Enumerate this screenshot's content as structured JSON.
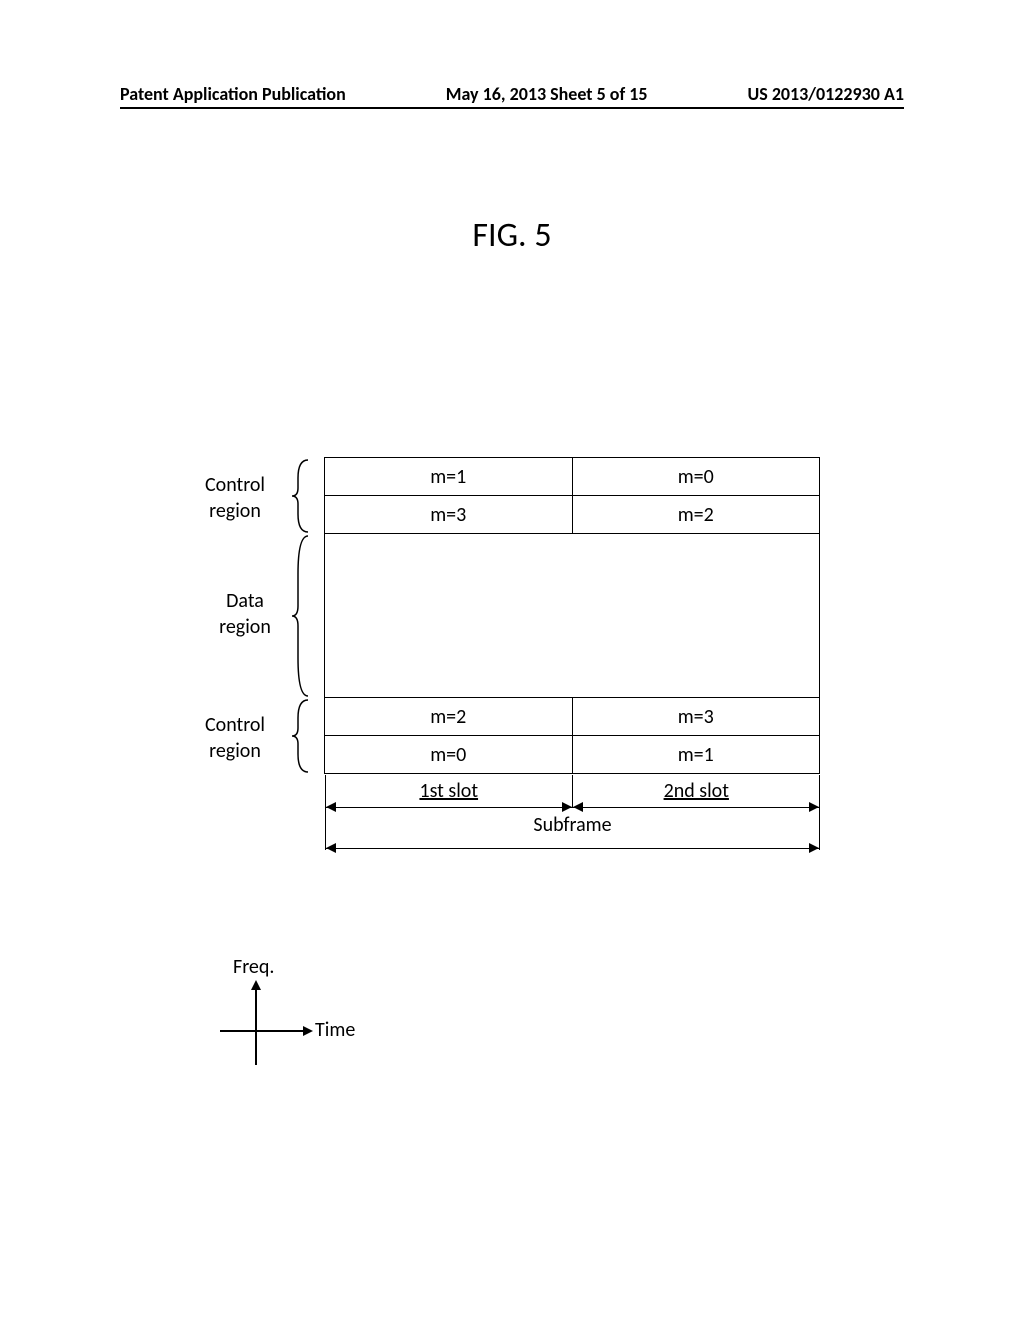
{
  "header": {
    "left": "Patent Application Publication",
    "center": "May 16, 2013  Sheet 5 of 15",
    "right": "US 2013/0122930 A1"
  },
  "figure": {
    "title": "FIG. 5",
    "regions": {
      "control_top": "Control\nregion",
      "data": "Data\nregion",
      "control_bottom": "Control\nregion"
    },
    "grid": {
      "top": [
        [
          "m=1",
          "m=0"
        ],
        [
          "m=3",
          "m=2"
        ]
      ],
      "bottom": [
        [
          "m=2",
          "m=3"
        ],
        [
          "m=0",
          "m=1"
        ]
      ]
    },
    "slots": {
      "first": "1st slot",
      "second": "2nd slot",
      "subframe": "Subframe"
    },
    "axes": {
      "y": "Freq.",
      "x": "Time"
    },
    "colors": {
      "background": "#ffffff",
      "line": "#000000",
      "text": "#000000"
    },
    "fontsize": {
      "header": 18,
      "title": 34,
      "body": 20
    }
  }
}
